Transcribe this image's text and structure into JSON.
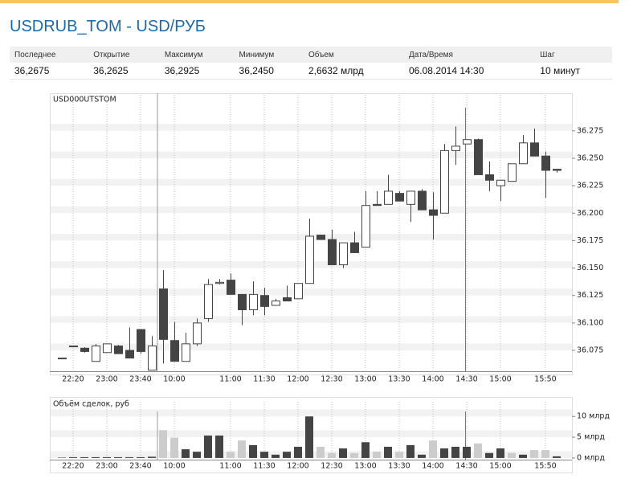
{
  "header": {
    "title": "USDRUB_TOM - USD/РУБ"
  },
  "quote_table": {
    "columns": [
      "Последнее",
      "Открытие",
      "Максимум",
      "Минимум",
      "Объем",
      "Дата/Время",
      "Шаг"
    ],
    "row": [
      "36,2675",
      "36,2625",
      "36,2925",
      "36,2450",
      "2,6632 млрд",
      "06.08.2014 14:30",
      "10 минут"
    ]
  },
  "chart_data": [
    {
      "type": "candlestick",
      "title": "USD000UTSTOM",
      "categories": [
        null,
        "22:20",
        null,
        null,
        "23:00",
        null,
        null,
        "23:40",
        null,
        null,
        "10:00",
        null,
        null,
        null,
        null,
        "11:00",
        null,
        null,
        "11:30",
        null,
        null,
        "12:00",
        null,
        null,
        "12:30",
        null,
        null,
        "13:00",
        null,
        null,
        "13:30",
        null,
        null,
        "14:00",
        null,
        null,
        "14:30",
        null,
        null,
        "15:00",
        null,
        null,
        null,
        "15:50",
        null
      ],
      "open": [
        36.068,
        36.079,
        36.077,
        36.065,
        36.073,
        36.079,
        36.075,
        36.094,
        36.057,
        36.131,
        36.084,
        36.065,
        36.081,
        36.104,
        36.136,
        36.139,
        36.126,
        36.112,
        36.125,
        36.116,
        36.123,
        36.122,
        36.136,
        36.18,
        36.176,
        36.153,
        36.173,
        36.169,
        36.208,
        36.208,
        36.218,
        36.208,
        36.22,
        36.203,
        36.2,
        36.257,
        36.263,
        36.267,
        36.235,
        36.225,
        36.229,
        36.245,
        36.264,
        36.252,
        36.24
      ],
      "high": [
        36.068,
        36.079,
        36.078,
        36.081,
        36.081,
        36.08,
        36.096,
        36.094,
        36.088,
        36.148,
        36.101,
        36.091,
        36.104,
        36.14,
        36.14,
        36.145,
        36.126,
        36.138,
        36.132,
        36.122,
        36.134,
        36.136,
        36.195,
        36.18,
        36.185,
        36.173,
        36.183,
        36.22,
        36.22,
        36.235,
        36.22,
        36.22,
        36.222,
        36.219,
        36.263,
        36.279,
        36.267,
        36.268,
        36.247,
        36.23,
        36.245,
        36.271,
        36.277,
        36.256,
        36.24
      ],
      "low": [
        36.068,
        36.079,
        36.073,
        36.065,
        36.073,
        36.072,
        36.068,
        36.072,
        36.057,
        36.063,
        36.065,
        36.065,
        36.079,
        36.101,
        36.135,
        36.126,
        36.098,
        36.107,
        36.107,
        36.116,
        36.12,
        36.122,
        36.136,
        36.176,
        36.153,
        36.15,
        36.164,
        36.169,
        36.207,
        36.208,
        36.211,
        36.192,
        36.203,
        36.176,
        36.2,
        36.244,
        36.263,
        36.235,
        36.22,
        36.211,
        36.229,
        36.245,
        36.252,
        36.214,
        36.237
      ],
      "close": [
        36.068,
        36.079,
        36.074,
        36.079,
        36.081,
        36.072,
        36.068,
        36.074,
        36.079,
        36.085,
        36.065,
        36.081,
        36.1,
        36.135,
        36.137,
        36.126,
        36.112,
        36.126,
        36.115,
        36.12,
        36.12,
        36.136,
        36.179,
        36.176,
        36.153,
        36.173,
        36.164,
        36.207,
        36.207,
        36.22,
        36.211,
        36.22,
        36.203,
        36.198,
        36.257,
        36.261,
        36.267,
        36.235,
        36.23,
        36.23,
        36.245,
        36.264,
        36.252,
        36.239,
        36.239
      ],
      "up_color": "#ffffff",
      "down_color": "#444444",
      "wick_color": "#444444",
      "ylim": [
        36.056,
        36.299
      ],
      "yticks": [
        36.075,
        {
          "value": 36.1,
          "label": "36.100"
        },
        36.125,
        {
          "value": 36.15,
          "label": "36.150"
        },
        36.175,
        {
          "value": 36.2,
          "label": "36.200"
        },
        36.225,
        {
          "value": 36.25,
          "label": "36.250"
        },
        36.275
      ],
      "grid": true
    },
    {
      "type": "bar",
      "title": "Объём сделок, руб",
      "categories": [
        null,
        "22:20",
        null,
        null,
        "23:00",
        null,
        null,
        "23:40",
        null,
        null,
        "10:00",
        null,
        null,
        null,
        null,
        "11:00",
        null,
        null,
        "11:30",
        null,
        null,
        "12:00",
        null,
        null,
        "12:30",
        null,
        null,
        "13:00",
        null,
        null,
        "13:30",
        null,
        null,
        "14:00",
        null,
        null,
        "14:30",
        null,
        null,
        "15:00",
        null,
        null,
        null,
        "15:50",
        null
      ],
      "values": [
        0.1,
        0.2,
        0.2,
        0.2,
        0.2,
        0.2,
        0.2,
        0.2,
        0.3,
        6.7,
        4.9,
        2.1,
        1.5,
        5.4,
        5.4,
        1.5,
        4.2,
        3.1,
        1.5,
        0.8,
        1.5,
        2.7,
        10.0,
        2.7,
        1.2,
        2.3,
        1.2,
        3.8,
        1.5,
        2.7,
        1.5,
        3.1,
        0.8,
        4.2,
        2.3,
        2.7,
        2.7,
        3.5,
        1.2,
        2.3,
        1.2,
        0.8,
        1.9,
        1.9,
        0.4
      ],
      "colors": [
        "#444444",
        "#444444",
        "#444444",
        "#444444",
        "#444444",
        "#444444",
        "#444444",
        "#444444",
        "#444444",
        "#cccccc",
        "#cccccc",
        "#444444",
        "#444444",
        "#444444",
        "#444444",
        "#cccccc",
        "#cccccc",
        "#444444",
        "#444444",
        "#444444",
        "#444444",
        "#444444",
        "#444444",
        "#cccccc",
        "#cccccc",
        "#444444",
        "#cccccc",
        "#444444",
        "#cccccc",
        "#444444",
        "#cccccc",
        "#444444",
        "#444444",
        "#cccccc",
        "#444444",
        "#444444",
        "#444444",
        "#cccccc",
        "#444444",
        "#444444",
        "#cccccc",
        "#444444",
        "#cccccc",
        "#cccccc",
        "#444444"
      ],
      "ylim": [
        -0.4,
        11.2
      ],
      "yticks": [
        {
          "value": 10,
          "label": "10 млрд"
        },
        {
          "value": 5,
          "label": "5 млрд"
        },
        {
          "value": 0,
          "label": "0 млрд"
        }
      ],
      "grid": true
    }
  ]
}
